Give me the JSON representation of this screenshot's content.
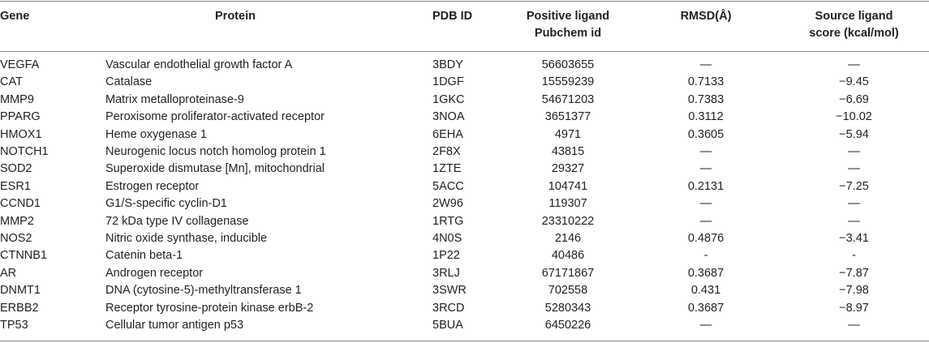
{
  "headers": {
    "gene": "Gene",
    "protein": "Protein",
    "pdb": "PDB ID",
    "ligand_line1": "Positive ligand",
    "ligand_line2": "Pubchem id",
    "rmsd": "RMSD(Å)",
    "source_line1": "Source ligand",
    "source_line2": "score (kcal/mol)"
  },
  "rows": [
    {
      "gene": "VEGFA",
      "protein": "Vascular endothelial growth factor A",
      "pdb": "3BDY",
      "ligand": "56603655",
      "rmsd": "—",
      "score": "—"
    },
    {
      "gene": "CAT",
      "protein": "Catalase",
      "pdb": "1DGF",
      "ligand": "15559239",
      "rmsd": "0.7133",
      "score": "−9.45"
    },
    {
      "gene": "MMP9",
      "protein": "Matrix metalloproteinase-9",
      "pdb": "1GKC",
      "ligand": "54671203",
      "rmsd": "0.7383",
      "score": "−6.69"
    },
    {
      "gene": "PPARG",
      "protein": "Peroxisome proliferator-activated receptor",
      "pdb": "3NOA",
      "ligand": "3651377",
      "rmsd": "0.3112",
      "score": "−10.02"
    },
    {
      "gene": "HMOX1",
      "protein": "Heme oxygenase 1",
      "pdb": "6EHA",
      "ligand": "4971",
      "rmsd": "0.3605",
      "score": "−5.94"
    },
    {
      "gene": "NOTCH1",
      "protein": "Neurogenic locus notch homolog protein 1",
      "pdb": "2F8X",
      "ligand": "43815",
      "rmsd": "—",
      "score": "—"
    },
    {
      "gene": "SOD2",
      "protein": "Superoxide dismutase [Mn], mitochondrial",
      "pdb": "1ZTE",
      "ligand": "29327",
      "rmsd": "—",
      "score": "—"
    },
    {
      "gene": "ESR1",
      "protein": "Estrogen receptor",
      "pdb": "5ACC",
      "ligand": "104741",
      "rmsd": "0.2131",
      "score": "−7.25"
    },
    {
      "gene": "CCND1",
      "protein": "G1/S-specific cyclin-D1",
      "pdb": "2W96",
      "ligand": "119307",
      "rmsd": "—",
      "score": "—"
    },
    {
      "gene": "MMP2",
      "protein": "72 kDa type IV collagenase",
      "pdb": "1RTG",
      "ligand": "23310222",
      "rmsd": "—",
      "score": "—"
    },
    {
      "gene": "NOS2",
      "protein": "Nitric oxide synthase, inducible",
      "pdb": "4N0S",
      "ligand": "2146",
      "rmsd": "0.4876",
      "score": "−3.41"
    },
    {
      "gene": "CTNNB1",
      "protein": "Catenin beta-1",
      "pdb": "1P22",
      "ligand": "40486",
      "rmsd": "-",
      "score": "-"
    },
    {
      "gene": "AR",
      "protein": "Androgen receptor",
      "pdb": "3RLJ",
      "ligand": "67171867",
      "rmsd": "0.3687",
      "score": "−7.87"
    },
    {
      "gene": "DNMT1",
      "protein": "DNA (cytosine-5)-methyltransferase 1",
      "pdb": "3SWR",
      "ligand": "702558",
      "rmsd": "0.431",
      "score": "−7.98"
    },
    {
      "gene": "ERBB2",
      "protein": "Receptor tyrosine-protein kinase erbB-2",
      "pdb": "3RCD",
      "ligand": "5280343",
      "rmsd": "0.3687",
      "score": "−8.97"
    },
    {
      "gene": "TP53",
      "protein": "Cellular tumor antigen p53",
      "pdb": "5BUA",
      "ligand": "6450226",
      "rmsd": "—",
      "score": "—"
    }
  ]
}
